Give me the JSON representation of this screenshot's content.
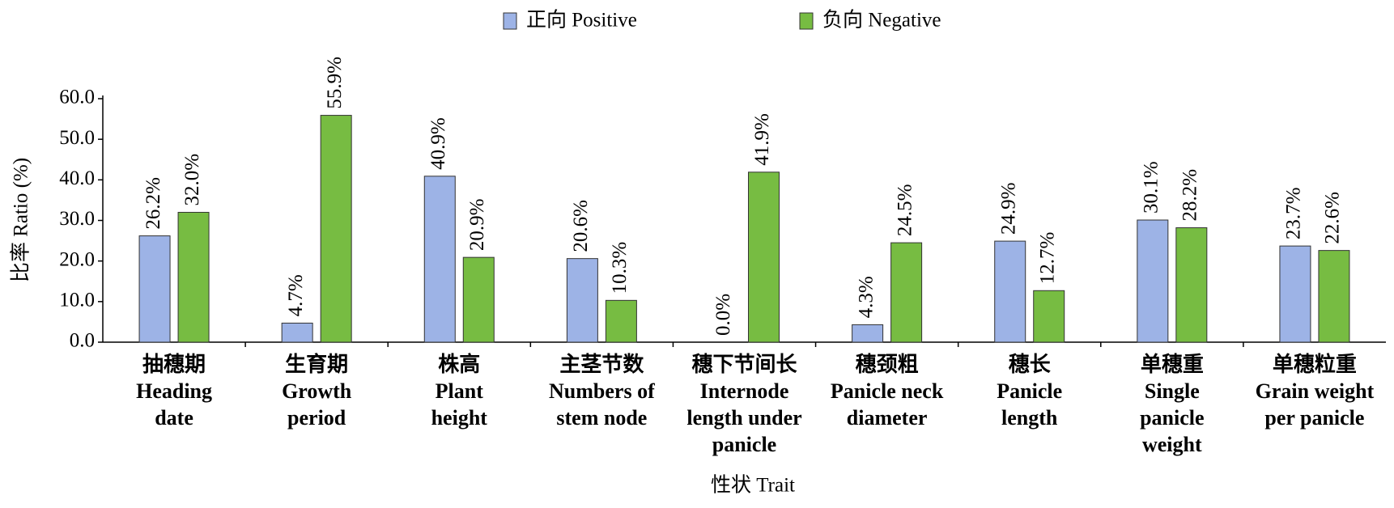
{
  "chart_data": {
    "type": "bar",
    "legend_position": "top",
    "ylabel": "比率 Ratio (%)",
    "xlabel": "性状 Trait",
    "categories": [
      [
        "抽穗期",
        "Heading",
        "date"
      ],
      [
        "生育期",
        "Growth",
        "period"
      ],
      [
        "株高",
        "Plant",
        "height"
      ],
      [
        "主茎节数",
        "Numbers of",
        "stem node"
      ],
      [
        "穗下节间长",
        "Internode",
        "length under",
        "panicle"
      ],
      [
        "穗颈粗",
        "Panicle neck",
        "diameter"
      ],
      [
        "穗长",
        "Panicle",
        "length"
      ],
      [
        "单穗重",
        "Single",
        "panicle",
        "weight"
      ],
      [
        "单穗粒重",
        "Grain weight",
        "per panicle"
      ]
    ],
    "series": [
      {
        "name": "正向 Positive",
        "color": "#9db3e6",
        "values": [
          26.2,
          4.7,
          40.9,
          20.6,
          0.0,
          4.3,
          24.9,
          30.1,
          23.7
        ],
        "value_labels": [
          "26.2%",
          "4.7%",
          "40.9%",
          "20.6%",
          "0.0%",
          "4.3%",
          "24.9%",
          "30.1%",
          "23.7%"
        ]
      },
      {
        "name": "负向 Negative",
        "color": "#77bc42",
        "values": [
          32.0,
          55.9,
          20.9,
          10.3,
          41.9,
          24.5,
          12.7,
          28.2,
          22.6
        ],
        "value_labels": [
          "32.0%",
          "55.9%",
          "20.9%",
          "10.3%",
          "41.9%",
          "24.5%",
          "12.7%",
          "28.2%",
          "22.6%"
        ]
      }
    ],
    "ylim": [
      0,
      60
    ],
    "yticks": [
      {
        "value": 0,
        "label": "0.0"
      },
      {
        "value": 10,
        "label": "10.0"
      },
      {
        "value": 20,
        "label": "20.0"
      },
      {
        "value": 30,
        "label": "30.0"
      },
      {
        "value": 40,
        "label": "40.0"
      },
      {
        "value": 50,
        "label": "50.0"
      },
      {
        "value": 60,
        "label": "60.0"
      }
    ],
    "grid": false
  }
}
